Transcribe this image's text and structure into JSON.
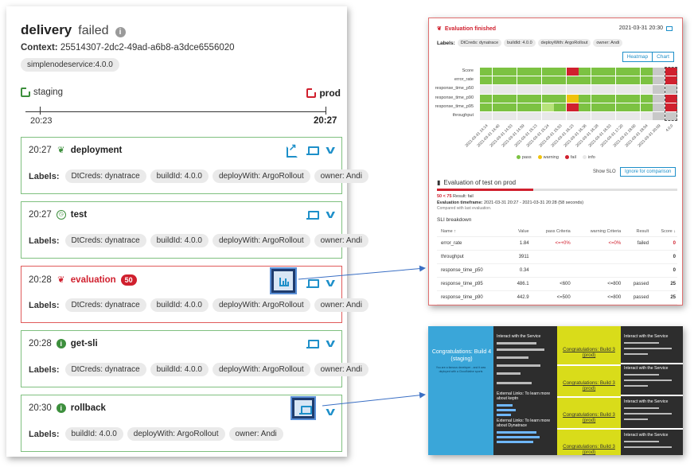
{
  "sequence": {
    "name": "delivery",
    "status": "failed",
    "context_label": "Context:",
    "context_id": "25514307-2dc2-49ad-a6b8-a3dce6556020",
    "service": "simplenodeservice:4.0.0"
  },
  "stages": {
    "left": {
      "name": "staging",
      "time": "20:23"
    },
    "right": {
      "name": "prod",
      "time": "20:27"
    }
  },
  "labels_title": "Labels:",
  "events": [
    {
      "time": "20:27",
      "name": "deployment",
      "labels": [
        "DtCreds: dynatrace",
        "buildId: 4.0.0",
        "deployWith: ArgoRollout",
        "owner: Andi"
      ]
    },
    {
      "time": "20:27",
      "name": "test",
      "labels": [
        "DtCreds: dynatrace",
        "buildId: 4.0.0",
        "deployWith: ArgoRollout",
        "owner: Andi"
      ]
    },
    {
      "time": "20:28",
      "name": "evaluation",
      "badge": "50",
      "labels": [
        "DtCreds: dynatrace",
        "buildId: 4.0.0",
        "deployWith: ArgoRollout",
        "owner: Andi"
      ]
    },
    {
      "time": "20:28",
      "name": "get-sli",
      "labels": [
        "DtCreds: dynatrace",
        "buildId: 4.0.0",
        "deployWith: ArgoRollout",
        "owner: Andi"
      ]
    },
    {
      "time": "20:30",
      "name": "rollback",
      "labels": [
        "buildId: 4.0.0",
        "deployWith: ArgoRollout",
        "owner: Andi"
      ]
    }
  ],
  "evaluation_panel": {
    "title": "Evaluation finished",
    "date": "2021-03-31 20:30",
    "labels_title": "Labels:",
    "labels": [
      "DtCreds: dynatrace",
      "buildId: 4.0.0",
      "deployWith: ArgoRollout",
      "owner: Andi"
    ],
    "toggle": [
      "Heatmap",
      "Chart"
    ],
    "legend": [
      "pass",
      "warning",
      "fail",
      "info"
    ],
    "show_slo": "Show SLO",
    "ignore_button": "Ignore for comparison",
    "eval_title": "Evaluation of test on prod",
    "score_line": "50 < 75",
    "score_result": "Result: fail",
    "timeframe_label": "Evaluation timeframe:",
    "timeframe": "2021-03-31 20:27 - 2021-03-31 20:28 (58 seconds)",
    "compared": "Compared with last evaluation.",
    "sli_title": "SLI breakdown",
    "table_headers": [
      "Name ↑",
      "Value",
      "pass Criteria",
      "warning Criteria",
      "Result",
      "Score ↓"
    ],
    "table_rows": [
      {
        "name": "error_rate",
        "value": "1.84",
        "pass": "<=+0%",
        "warning": "<=0%",
        "result": "failed",
        "score": "0"
      },
      {
        "name": "throughput",
        "value": "3911",
        "pass": "",
        "warning": "",
        "result": "",
        "score": "0"
      },
      {
        "name": "response_time_p50",
        "value": "0.34",
        "pass": "",
        "warning": "",
        "result": "",
        "score": "0"
      },
      {
        "name": "response_time_p95",
        "value": "486.1",
        "pass": "<600",
        "warning": "<=800",
        "result": "passed",
        "score": "25"
      },
      {
        "name": "response_time_p90",
        "value": "442.9",
        "pass": "<=500",
        "warning": "<=800",
        "result": "passed",
        "score": "25"
      }
    ]
  },
  "chart_data": {
    "type": "heatmap",
    "rows": [
      "Score",
      "error_rate",
      "response_time_p50",
      "response_time_p90",
      "response_time_p95",
      "throughput"
    ],
    "columns": [
      "2021-03-31 14:14",
      "2021-03-31 14:40",
      "2021-03-31 14:53",
      "2021-03-31 14:59",
      "2021-03-31 15:13",
      "2021-03-31 15:24",
      "2021-03-31 15:53",
      "2021-03-31 16:23",
      "2021-03-31 16:36",
      "2021-03-31 16:28",
      "2021-03-31 16:53",
      "2021-03-31 17:20",
      "2021-03-31 18:00",
      "2021-03-31 18:54",
      "2021-03-31 20:09",
      "4.0.0"
    ],
    "colors": {
      "pass": "#7cc242",
      "warning": "#f0c20c",
      "fail": "#d0202e",
      "info": "#e8e8e8",
      "prev": "#c8c8c8"
    }
  },
  "app_panel": {
    "blue_title": "Congratulations: Build 4 (staging)",
    "blue_sub": "You are a famous developer - and it was deployed with a CloudNative sports",
    "dark_heading": "Interact with the Service",
    "ext_heading_1": "External Links: To learn more about keptn",
    "ext_heading_2": "External Links: To learn more about Dynatrace",
    "yellow_title": "Congratulations: Build 3 (prod)"
  }
}
